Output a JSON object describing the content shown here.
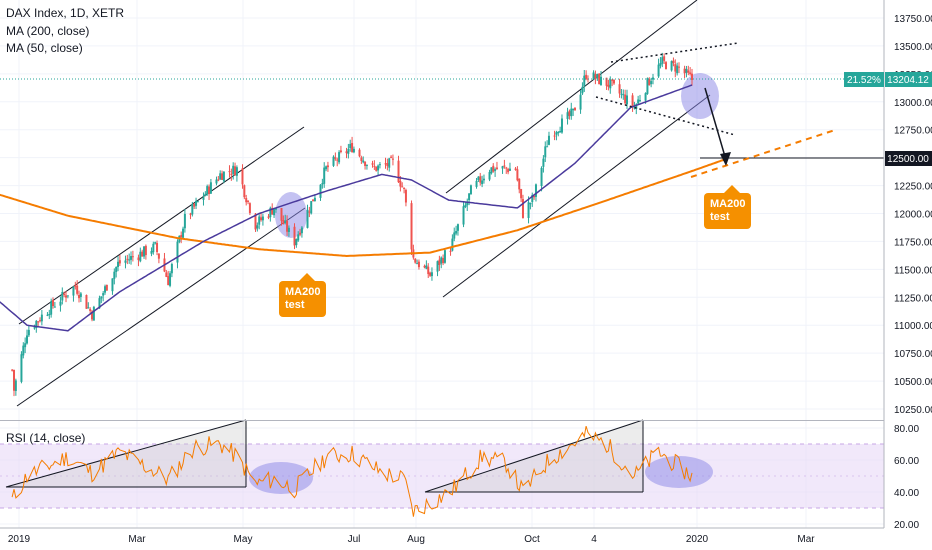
{
  "legend": {
    "title": "DAX Index, 1D, XETR",
    "ma200": "MA (200, close)",
    "ma50": "MA (50, close)",
    "rsi": "RSI (14, close)"
  },
  "badges": {
    "percent": "21.52%",
    "last_price": "13204.12",
    "level": "12500.00"
  },
  "callouts": [
    {
      "line1": "MA200",
      "line2": "test"
    },
    {
      "line1": "MA200",
      "line2": "test"
    }
  ],
  "colors": {
    "up": "#26a69a",
    "down": "#ef5350",
    "ma200": "#f57c00",
    "ma50": "#4a3a9c",
    "rsi": "#f57c00",
    "rsi_band": "#e8d9f7",
    "highlight": "#8a86e6",
    "badge_green": "#26a69a",
    "callout": "#f59000"
  },
  "chart_data": {
    "type": "candlestick",
    "title": "DAX Index, 1D, XETR",
    "price_axis": {
      "ticks": [
        "13750.00",
        "13500.00",
        "13250.00",
        "13000.00",
        "12750.00",
        "12500.00",
        "12250.00",
        "12000.00",
        "11750.00",
        "11500.00",
        "11250.00",
        "11000.00",
        "10750.00",
        "10500.00",
        "10250.00"
      ],
      "range": [
        10200,
        13900
      ]
    },
    "rsi_axis": {
      "ticks": [
        "80.00",
        "60.00",
        "40.00",
        "20.00"
      ],
      "range": [
        18,
        86
      ],
      "bands": [
        30,
        70
      ]
    },
    "time_axis": {
      "labels": [
        "2019",
        "Mar",
        "May",
        "Jul",
        "Aug",
        "Oct",
        "4",
        "2020",
        "Mar"
      ]
    },
    "price_anchors": [
      [
        "2019-01-02",
        10600
      ],
      [
        "2019-01-03",
        10420
      ],
      [
        "2019-01-10",
        10950
      ],
      [
        "2019-01-22",
        11150
      ],
      [
        "2019-02-05",
        11350
      ],
      [
        "2019-02-14",
        11100
      ],
      [
        "2019-02-28",
        11550
      ],
      [
        "2019-03-20",
        11700
      ],
      [
        "2019-03-27",
        11400
      ],
      [
        "2019-04-05",
        11950
      ],
      [
        "2019-04-24",
        12350
      ],
      [
        "2019-05-03",
        12400
      ],
      [
        "2019-05-13",
        11900
      ],
      [
        "2019-05-23",
        12050
      ],
      [
        "2019-06-03",
        11750
      ],
      [
        "2019-06-20",
        12400
      ],
      [
        "2019-07-04",
        12600
      ],
      [
        "2019-07-15",
        12400
      ],
      [
        "2019-07-26",
        12450
      ],
      [
        "2019-08-01",
        12200
      ],
      [
        "2019-08-06",
        11600
      ],
      [
        "2019-08-15",
        11450
      ],
      [
        "2019-08-26",
        11700
      ],
      [
        "2019-09-06",
        12200
      ],
      [
        "2019-09-16",
        12400
      ],
      [
        "2019-09-30",
        12400
      ],
      [
        "2019-10-04",
        12000
      ],
      [
        "2019-10-10",
        12150
      ],
      [
        "2019-10-18",
        12700
      ],
      [
        "2019-10-31",
        12900
      ],
      [
        "2019-11-07",
        13250
      ],
      [
        "2019-11-20",
        13150
      ],
      [
        "2019-12-03",
        12950
      ],
      [
        "2019-12-13",
        13250
      ],
      [
        "2019-12-18",
        13350
      ],
      [
        "2019-12-27",
        13300
      ],
      [
        "2020-01-03",
        13200
      ]
    ],
    "series": [
      {
        "name": "MA (200, close)",
        "anchors": [
          [
            "2018-12-20",
            12200
          ],
          [
            "2019-02-01",
            11980
          ],
          [
            "2019-04-01",
            11780
          ],
          [
            "2019-05-15",
            11680
          ],
          [
            "2019-07-01",
            11620
          ],
          [
            "2019-08-15",
            11650
          ],
          [
            "2019-10-01",
            11850
          ],
          [
            "2019-11-15",
            12100
          ],
          [
            "2020-01-03",
            12380
          ],
          [
            "2020-01-20",
            12480
          ]
        ]
      },
      {
        "name": "MA (50, close)",
        "anchors": [
          [
            "2018-12-20",
            11300
          ],
          [
            "2019-01-10",
            11000
          ],
          [
            "2019-02-01",
            10950
          ],
          [
            "2019-03-01",
            11300
          ],
          [
            "2019-04-15",
            11750
          ],
          [
            "2019-05-15",
            12000
          ],
          [
            "2019-06-20",
            12200
          ],
          [
            "2019-07-20",
            12350
          ],
          [
            "2019-08-05",
            12300
          ],
          [
            "2019-08-25",
            12120
          ],
          [
            "2019-10-01",
            12050
          ],
          [
            "2019-11-01",
            12450
          ],
          [
            "2019-12-01",
            12950
          ],
          [
            "2020-01-03",
            13150
          ]
        ]
      },
      {
        "name": "RSI (14, close)",
        "anchors": [
          [
            "2019-01-02",
            35
          ],
          [
            "2019-01-10",
            50
          ],
          [
            "2019-02-01",
            62
          ],
          [
            "2019-02-14",
            52
          ],
          [
            "2019-03-01",
            65
          ],
          [
            "2019-03-27",
            48
          ],
          [
            "2019-04-10",
            68
          ],
          [
            "2019-04-24",
            70
          ],
          [
            "2019-05-03",
            62
          ],
          [
            "2019-05-13",
            45
          ],
          [
            "2019-05-23",
            48
          ],
          [
            "2019-06-03",
            42
          ],
          [
            "2019-06-20",
            62
          ],
          [
            "2019-07-04",
            64
          ],
          [
            "2019-07-20",
            52
          ],
          [
            "2019-08-01",
            48
          ],
          [
            "2019-08-06",
            28
          ],
          [
            "2019-08-26",
            40
          ],
          [
            "2019-09-12",
            62
          ],
          [
            "2019-09-25",
            58
          ],
          [
            "2019-10-04",
            40
          ],
          [
            "2019-10-18",
            60
          ],
          [
            "2019-11-07",
            76
          ],
          [
            "2019-11-18",
            70
          ],
          [
            "2019-12-03",
            50
          ],
          [
            "2019-12-16",
            65
          ],
          [
            "2020-01-03",
            50
          ]
        ]
      }
    ],
    "annotations": {
      "level_line": 12500,
      "callout_text": "MA200 test"
    }
  }
}
